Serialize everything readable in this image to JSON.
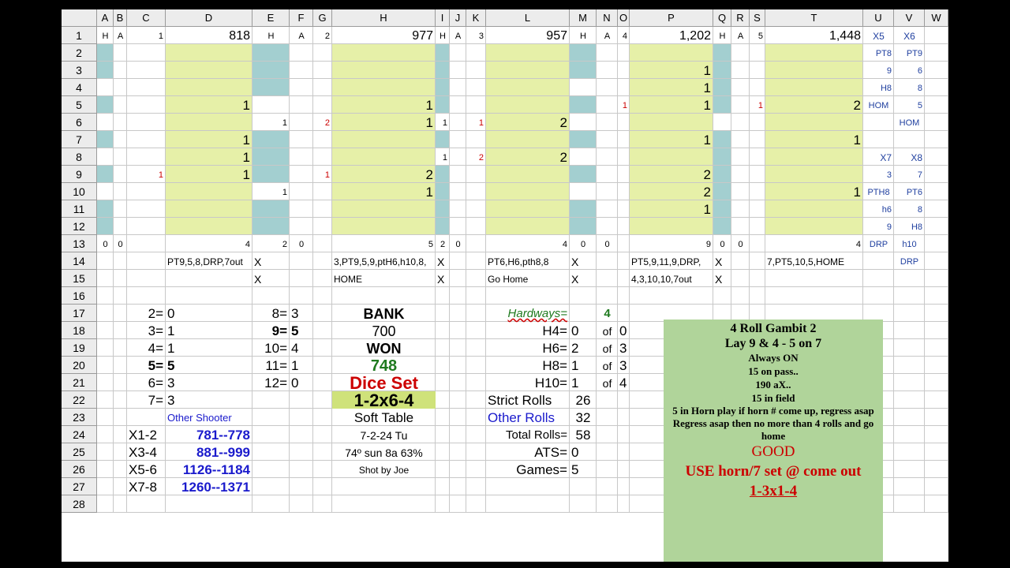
{
  "columns": [
    "A",
    "B",
    "C",
    "D",
    "E",
    "F",
    "G",
    "H",
    "I",
    "J",
    "K",
    "L",
    "M",
    "N",
    "O",
    "P",
    "Q",
    "R",
    "S",
    "T",
    "U",
    "V",
    "W"
  ],
  "rows": [
    "1",
    "2",
    "3",
    "4",
    "5",
    "6",
    "7",
    "8",
    "9",
    "10",
    "11",
    "12",
    "13",
    "14",
    "15",
    "16",
    "17",
    "18",
    "19",
    "20",
    "21",
    "22",
    "23",
    "24",
    "25",
    "26",
    "27",
    "28"
  ],
  "colors": {
    "yellow": "#e6f0a8",
    "teal": "#a3cfd0",
    "red": "#cc0000",
    "blue": "#1a1acc",
    "green": "#1f7a1f",
    "panel": "#b0d49a",
    "navy": "#1f3f9f"
  },
  "cells": [
    {
      "t": "H",
      "c": "A",
      "r": 1,
      "a": "c",
      "s": 11
    },
    {
      "t": "A",
      "c": "B",
      "r": 1,
      "a": "c",
      "s": 11
    },
    {
      "t": "1",
      "c": "C",
      "r": 1,
      "a": "r",
      "s": 11
    },
    {
      "t": "818",
      "c": "D",
      "r": 1,
      "a": "r",
      "s": 16
    },
    {
      "t": "H",
      "c": "E",
      "r": 1,
      "a": "c",
      "s": 11
    },
    {
      "t": "A",
      "c": "F",
      "r": 1,
      "a": "c",
      "s": 11
    },
    {
      "t": "2",
      "c": "G",
      "r": 1,
      "a": "r",
      "s": 11
    },
    {
      "t": "977",
      "c": "H",
      "r": 1,
      "a": "r",
      "s": 16
    },
    {
      "t": "H",
      "c": "I",
      "r": 1,
      "a": "c",
      "s": 11
    },
    {
      "t": "A",
      "c": "J",
      "r": 1,
      "a": "c",
      "s": 11
    },
    {
      "t": "3",
      "c": "K",
      "r": 1,
      "a": "r",
      "s": 11
    },
    {
      "t": "957",
      "c": "L",
      "r": 1,
      "a": "r",
      "s": 16
    },
    {
      "t": "H",
      "c": "M",
      "r": 1,
      "a": "c",
      "s": 11
    },
    {
      "t": "A",
      "c": "N",
      "r": 1,
      "a": "c",
      "s": 11
    },
    {
      "t": "4",
      "c": "O",
      "r": 1,
      "a": "r",
      "s": 11
    },
    {
      "t": "1,202",
      "c": "P",
      "r": 1,
      "a": "r",
      "s": 16
    },
    {
      "t": "H",
      "c": "Q",
      "r": 1,
      "a": "c",
      "s": 11
    },
    {
      "t": "A",
      "c": "R",
      "r": 1,
      "a": "c",
      "s": 11
    },
    {
      "t": "5",
      "c": "S",
      "r": 1,
      "a": "r",
      "s": 11
    },
    {
      "t": "1,448",
      "c": "T",
      "r": 1,
      "a": "r",
      "s": 16
    },
    {
      "t": "X5",
      "c": "U",
      "r": 1,
      "a": "c",
      "s": 12,
      "col": "navy"
    },
    {
      "t": "X6",
      "c": "V",
      "r": 1,
      "a": "c",
      "s": 12,
      "col": "navy"
    },
    {
      "t": "PT8",
      "c": "U",
      "r": 2,
      "a": "r",
      "s": 11,
      "col": "navy"
    },
    {
      "t": "PT9",
      "c": "V",
      "r": 2,
      "a": "r",
      "s": 11,
      "col": "navy"
    },
    {
      "t": "1",
      "c": "P",
      "r": 3,
      "a": "r",
      "s": 17
    },
    {
      "t": "9",
      "c": "U",
      "r": 3,
      "a": "r",
      "s": 11,
      "col": "navy"
    },
    {
      "t": "6",
      "c": "V",
      "r": 3,
      "a": "r",
      "s": 11,
      "col": "navy"
    },
    {
      "t": "1",
      "c": "P",
      "r": 4,
      "a": "r",
      "s": 17
    },
    {
      "t": "H8",
      "c": "U",
      "r": 4,
      "a": "r",
      "s": 11,
      "col": "navy"
    },
    {
      "t": "8",
      "c": "V",
      "r": 4,
      "a": "r",
      "s": 11,
      "col": "navy"
    },
    {
      "t": "1",
      "c": "D",
      "r": 5,
      "a": "r",
      "s": 17
    },
    {
      "t": "1",
      "c": "H",
      "r": 5,
      "a": "r",
      "s": 17
    },
    {
      "t": "1",
      "c": "O",
      "r": 5,
      "a": "r",
      "s": 11,
      "col": "red"
    },
    {
      "t": "1",
      "c": "P",
      "r": 5,
      "a": "r",
      "s": 17
    },
    {
      "t": "1",
      "c": "S",
      "r": 5,
      "a": "r",
      "s": 11,
      "col": "red"
    },
    {
      "t": "2",
      "c": "T",
      "r": 5,
      "a": "r",
      "s": 17
    },
    {
      "t": "HOM",
      "c": "U",
      "r": 5,
      "a": "c",
      "s": 11,
      "col": "navy"
    },
    {
      "t": "5",
      "c": "V",
      "r": 5,
      "a": "r",
      "s": 11,
      "col": "navy"
    },
    {
      "t": "1",
      "c": "E",
      "r": 6,
      "a": "r",
      "s": 11
    },
    {
      "t": "2",
      "c": "G",
      "r": 6,
      "a": "r",
      "s": 11,
      "col": "red"
    },
    {
      "t": "1",
      "c": "H",
      "r": 6,
      "a": "r",
      "s": 17
    },
    {
      "t": "1",
      "c": "I",
      "r": 6,
      "a": "r",
      "s": 11
    },
    {
      "t": "1",
      "c": "K",
      "r": 6,
      "a": "r",
      "s": 11,
      "col": "red"
    },
    {
      "t": "2",
      "c": "L",
      "r": 6,
      "a": "r",
      "s": 17
    },
    {
      "t": "HOM",
      "c": "V",
      "r": 6,
      "a": "c",
      "s": 11,
      "col": "navy"
    },
    {
      "t": "1",
      "c": "D",
      "r": 7,
      "a": "r",
      "s": 17
    },
    {
      "t": "1",
      "c": "P",
      "r": 7,
      "a": "r",
      "s": 17
    },
    {
      "t": "1",
      "c": "T",
      "r": 7,
      "a": "r",
      "s": 17
    },
    {
      "t": "1",
      "c": "D",
      "r": 8,
      "a": "r",
      "s": 17
    },
    {
      "t": "1",
      "c": "I",
      "r": 8,
      "a": "r",
      "s": 11
    },
    {
      "t": "2",
      "c": "K",
      "r": 8,
      "a": "r",
      "s": 11,
      "col": "red"
    },
    {
      "t": "2",
      "c": "L",
      "r": 8,
      "a": "r",
      "s": 17
    },
    {
      "t": "X7",
      "c": "U",
      "r": 8,
      "a": "r",
      "s": 12,
      "col": "navy"
    },
    {
      "t": "X8",
      "c": "V",
      "r": 8,
      "a": "r",
      "s": 12,
      "col": "navy"
    },
    {
      "t": "1",
      "c": "C",
      "r": 9,
      "a": "r",
      "s": 11,
      "col": "red"
    },
    {
      "t": "1",
      "c": "D",
      "r": 9,
      "a": "r",
      "s": 17
    },
    {
      "t": "1",
      "c": "G",
      "r": 9,
      "a": "r",
      "s": 11,
      "col": "red"
    },
    {
      "t": "2",
      "c": "H",
      "r": 9,
      "a": "r",
      "s": 17
    },
    {
      "t": "2",
      "c": "P",
      "r": 9,
      "a": "r",
      "s": 17
    },
    {
      "t": "3",
      "c": "U",
      "r": 9,
      "a": "r",
      "s": 11,
      "col": "navy"
    },
    {
      "t": "7",
      "c": "V",
      "r": 9,
      "a": "r",
      "s": 11,
      "col": "navy"
    },
    {
      "t": "1",
      "c": "E",
      "r": 10,
      "a": "r",
      "s": 11
    },
    {
      "t": "1",
      "c": "H",
      "r": 10,
      "a": "r",
      "s": 17
    },
    {
      "t": "2",
      "c": "P",
      "r": 10,
      "a": "r",
      "s": 17
    },
    {
      "t": "1",
      "c": "T",
      "r": 10,
      "a": "r",
      "s": 17
    },
    {
      "t": "PTH8",
      "c": "U",
      "r": 10,
      "a": "c",
      "s": 11,
      "col": "navy"
    },
    {
      "t": "PT6",
      "c": "V",
      "r": 10,
      "a": "r",
      "s": 11,
      "col": "navy"
    },
    {
      "t": "1",
      "c": "P",
      "r": 11,
      "a": "r",
      "s": 17
    },
    {
      "t": "h6",
      "c": "U",
      "r": 11,
      "a": "r",
      "s": 11,
      "col": "navy"
    },
    {
      "t": "8",
      "c": "V",
      "r": 11,
      "a": "r",
      "s": 11,
      "col": "navy"
    },
    {
      "t": "9",
      "c": "U",
      "r": 12,
      "a": "r",
      "s": 11,
      "col": "navy"
    },
    {
      "t": "H8",
      "c": "V",
      "r": 12,
      "a": "r",
      "s": 11,
      "col": "navy"
    },
    {
      "t": "0",
      "c": "A",
      "r": 13,
      "a": "c",
      "s": 11
    },
    {
      "t": "0",
      "c": "B",
      "r": 13,
      "a": "c",
      "s": 11
    },
    {
      "t": "4",
      "c": "D",
      "r": 13,
      "a": "r",
      "s": 11
    },
    {
      "t": "2",
      "c": "E",
      "r": 13,
      "a": "r",
      "s": 11
    },
    {
      "t": "0",
      "c": "F",
      "r": 13,
      "a": "c",
      "s": 11
    },
    {
      "t": "5",
      "c": "H",
      "r": 13,
      "a": "r",
      "s": 11
    },
    {
      "t": "2",
      "c": "I",
      "r": 13,
      "a": "c",
      "s": 11
    },
    {
      "t": "0",
      "c": "J",
      "r": 13,
      "a": "c",
      "s": 11
    },
    {
      "t": "4",
      "c": "L",
      "r": 13,
      "a": "r",
      "s": 11
    },
    {
      "t": "0",
      "c": "M",
      "r": 13,
      "a": "c",
      "s": 11
    },
    {
      "t": "0",
      "c": "N",
      "r": 13,
      "a": "c",
      "s": 11
    },
    {
      "t": "9",
      "c": "P",
      "r": 13,
      "a": "r",
      "s": 11
    },
    {
      "t": "0",
      "c": "Q",
      "r": 13,
      "a": "c",
      "s": 11
    },
    {
      "t": "0",
      "c": "R",
      "r": 13,
      "a": "c",
      "s": 11
    },
    {
      "t": "4",
      "c": "T",
      "r": 13,
      "a": "r",
      "s": 11
    },
    {
      "t": "DRP",
      "c": "U",
      "r": 13,
      "a": "c",
      "s": 11,
      "col": "navy"
    },
    {
      "t": "h10",
      "c": "V",
      "r": 13,
      "a": "c",
      "s": 11,
      "col": "navy"
    },
    {
      "t": "PT9,5,8,DRP,7out",
      "c": "D",
      "r": 14,
      "a": "l",
      "s": 12
    },
    {
      "t": "X",
      "c": "E",
      "r": 14,
      "a": "l",
      "s": 14
    },
    {
      "t": "3,PT9,5,9,ptH6,h10,8,",
      "c": "H",
      "r": 14,
      "a": "l",
      "s": 12
    },
    {
      "t": "X",
      "c": "I",
      "r": 14,
      "a": "l",
      "s": 14
    },
    {
      "t": "PT6,H6,pth8,8",
      "c": "L",
      "r": 14,
      "a": "l",
      "s": 12
    },
    {
      "t": "X",
      "c": "M",
      "r": 14,
      "a": "l",
      "s": 14
    },
    {
      "t": "PT5,9,11,9,DRP,",
      "c": "P",
      "r": 14,
      "a": "l",
      "s": 12
    },
    {
      "t": "X",
      "c": "Q",
      "r": 14,
      "a": "l",
      "s": 14
    },
    {
      "t": "7,PT5,10,5,HOME",
      "c": "T",
      "r": 14,
      "a": "l",
      "s": 12
    },
    {
      "t": "DRP",
      "c": "V",
      "r": 14,
      "a": "c",
      "s": 11,
      "col": "navy"
    },
    {
      "t": "X",
      "c": "E",
      "r": 15,
      "a": "l",
      "s": 14
    },
    {
      "t": "HOME",
      "c": "H",
      "r": 15,
      "a": "l",
      "s": 12
    },
    {
      "t": "X",
      "c": "I",
      "r": 15,
      "a": "l",
      "s": 14
    },
    {
      "t": "Go Home",
      "c": "L",
      "r": 15,
      "a": "l",
      "s": 12
    },
    {
      "t": "X",
      "c": "M",
      "r": 15,
      "a": "l",
      "s": 14
    },
    {
      "t": "4,3,10,10,7out",
      "c": "P",
      "r": 15,
      "a": "l",
      "s": 12
    },
    {
      "t": "X",
      "c": "Q",
      "r": 15,
      "a": "l",
      "s": 14
    },
    {
      "t": "2=",
      "c": "C",
      "r": 17,
      "a": "r",
      "s": 17
    },
    {
      "t": "0",
      "c": "D",
      "r": 17,
      "a": "l",
      "s": 17
    },
    {
      "t": "8=",
      "c": "E",
      "r": 17,
      "a": "r",
      "s": 17
    },
    {
      "t": "3",
      "c": "F",
      "r": 17,
      "a": "l",
      "s": 17
    },
    {
      "t": "BANK",
      "c": "H",
      "r": 17,
      "a": "c",
      "s": 18,
      "b": 1
    },
    {
      "t": "Hardways=",
      "c": "L",
      "r": 17,
      "a": "r",
      "s": 15,
      "col": "green",
      "it": 1,
      "u": 1
    },
    {
      "t": "4",
      "c": "N",
      "r": 17,
      "a": "c",
      "s": 15,
      "col": "green",
      "b": 1
    },
    {
      "t": "3=",
      "c": "C",
      "r": 18,
      "a": "r",
      "s": 17
    },
    {
      "t": "1",
      "c": "D",
      "r": 18,
      "a": "l",
      "s": 17
    },
    {
      "t": "9=",
      "c": "E",
      "r": 18,
      "a": "r",
      "s": 17,
      "b": 1
    },
    {
      "t": "5",
      "c": "F",
      "r": 18,
      "a": "l",
      "s": 17,
      "b": 1
    },
    {
      "t": "700",
      "c": "H",
      "r": 18,
      "a": "c",
      "s": 18
    },
    {
      "t": "H4=",
      "c": "L",
      "r": 18,
      "a": "r",
      "s": 17
    },
    {
      "t": "0",
      "c": "M",
      "r": 18,
      "a": "l",
      "s": 17
    },
    {
      "t": "of",
      "c": "N",
      "r": 18,
      "a": "c",
      "s": 14
    },
    {
      "t": "0",
      "c": "O",
      "r": 18,
      "a": "l",
      "s": 17
    },
    {
      "t": "4=",
      "c": "C",
      "r": 19,
      "a": "r",
      "s": 17
    },
    {
      "t": "1",
      "c": "D",
      "r": 19,
      "a": "l",
      "s": 17
    },
    {
      "t": "10=",
      "c": "E",
      "r": 19,
      "a": "r",
      "s": 17
    },
    {
      "t": "4",
      "c": "F",
      "r": 19,
      "a": "l",
      "s": 17
    },
    {
      "t": "WON",
      "c": "H",
      "r": 19,
      "a": "c",
      "s": 18,
      "b": 1
    },
    {
      "t": "H6=",
      "c": "L",
      "r": 19,
      "a": "r",
      "s": 17
    },
    {
      "t": "2",
      "c": "M",
      "r": 19,
      "a": "l",
      "s": 17
    },
    {
      "t": "of",
      "c": "N",
      "r": 19,
      "a": "c",
      "s": 14
    },
    {
      "t": "3",
      "c": "O",
      "r": 19,
      "a": "l",
      "s": 17
    },
    {
      "t": "5=",
      "c": "C",
      "r": 20,
      "a": "r",
      "s": 17,
      "b": 1
    },
    {
      "t": "5",
      "c": "D",
      "r": 20,
      "a": "l",
      "s": 17,
      "b": 1
    },
    {
      "t": "11=",
      "c": "E",
      "r": 20,
      "a": "r",
      "s": 17
    },
    {
      "t": "1",
      "c": "F",
      "r": 20,
      "a": "l",
      "s": 17
    },
    {
      "t": "748",
      "c": "H",
      "r": 20,
      "a": "c",
      "s": 20,
      "b": 1,
      "col": "green"
    },
    {
      "t": "H8=",
      "c": "L",
      "r": 20,
      "a": "r",
      "s": 17
    },
    {
      "t": "1",
      "c": "M",
      "r": 20,
      "a": "l",
      "s": 17
    },
    {
      "t": "of",
      "c": "N",
      "r": 20,
      "a": "c",
      "s": 14
    },
    {
      "t": "3",
      "c": "O",
      "r": 20,
      "a": "l",
      "s": 17
    },
    {
      "t": "6=",
      "c": "C",
      "r": 21,
      "a": "r",
      "s": 17
    },
    {
      "t": "3",
      "c": "D",
      "r": 21,
      "a": "l",
      "s": 17
    },
    {
      "t": "12=",
      "c": "E",
      "r": 21,
      "a": "r",
      "s": 17
    },
    {
      "t": "0",
      "c": "F",
      "r": 21,
      "a": "l",
      "s": 17
    },
    {
      "t": "Dice Set",
      "c": "H",
      "r": 21,
      "a": "c",
      "s": 22,
      "b": 1,
      "col": "red"
    },
    {
      "t": "H10=",
      "c": "L",
      "r": 21,
      "a": "r",
      "s": 17
    },
    {
      "t": "1",
      "c": "M",
      "r": 21,
      "a": "l",
      "s": 17
    },
    {
      "t": "of",
      "c": "N",
      "r": 21,
      "a": "c",
      "s": 14
    },
    {
      "t": "4",
      "c": "O",
      "r": 21,
      "a": "l",
      "s": 17
    },
    {
      "t": "7=",
      "c": "C",
      "r": 22,
      "a": "r",
      "s": 17
    },
    {
      "t": "3",
      "c": "D",
      "r": 22,
      "a": "l",
      "s": 17
    },
    {
      "t": "1-2x6-4",
      "c": "H",
      "r": 22,
      "a": "c",
      "s": 22,
      "b": 1,
      "bg": "#cfe27a"
    },
    {
      "t": "Strict Rolls",
      "c": "L",
      "r": 22,
      "a": "l",
      "s": 17
    },
    {
      "t": "26",
      "c": "M",
      "r": 22,
      "a": "c",
      "s": 17
    },
    {
      "t": "Other Shooter",
      "c": "D",
      "r": 23,
      "a": "l",
      "s": 13,
      "col": "blue"
    },
    {
      "t": "Soft Table",
      "c": "H",
      "r": 23,
      "a": "c",
      "s": 17
    },
    {
      "t": "Other Rolls",
      "c": "L",
      "r": 23,
      "a": "l",
      "s": 17,
      "col": "blue"
    },
    {
      "t": "32",
      "c": "M",
      "r": 23,
      "a": "c",
      "s": 17
    },
    {
      "t": "X1-2",
      "c": "C",
      "r": 24,
      "a": "l",
      "s": 17
    },
    {
      "t": "781--778",
      "c": "D",
      "r": 24,
      "a": "r",
      "s": 17,
      "b": 1,
      "col": "blue"
    },
    {
      "t": "7-2-24 Tu",
      "c": "H",
      "r": 24,
      "a": "c",
      "s": 14
    },
    {
      "t": "Total Rolls=",
      "c": "L",
      "r": 24,
      "a": "r",
      "s": 15
    },
    {
      "t": "58",
      "c": "M",
      "r": 24,
      "a": "c",
      "s": 17
    },
    {
      "t": "X3-4",
      "c": "C",
      "r": 25,
      "a": "l",
      "s": 17
    },
    {
      "t": "881--999",
      "c": "D",
      "r": 25,
      "a": "r",
      "s": 17,
      "b": 1,
      "col": "blue"
    },
    {
      "t": "74º sun 8a 63%",
      "c": "H",
      "r": 25,
      "a": "c",
      "s": 14
    },
    {
      "t": "ATS=",
      "c": "L",
      "r": 25,
      "a": "r",
      "s": 17
    },
    {
      "t": "0",
      "c": "M",
      "r": 25,
      "a": "l",
      "s": 17
    },
    {
      "t": "X5-6",
      "c": "C",
      "r": 26,
      "a": "l",
      "s": 17
    },
    {
      "t": "1126--1184",
      "c": "D",
      "r": 26,
      "a": "r",
      "s": 17,
      "b": 1,
      "col": "blue"
    },
    {
      "t": "Shot by Joe",
      "c": "H",
      "r": 26,
      "a": "c",
      "s": 12
    },
    {
      "t": "Games=",
      "c": "L",
      "r": 26,
      "a": "r",
      "s": 17
    },
    {
      "t": "5",
      "c": "M",
      "r": 26,
      "a": "l",
      "s": 17
    },
    {
      "t": "X7-8",
      "c": "C",
      "r": 27,
      "a": "l",
      "s": 17
    },
    {
      "t": "1260--1371",
      "c": "D",
      "r": 27,
      "a": "r",
      "s": 17,
      "b": 1,
      "col": "blue"
    }
  ],
  "panel": {
    "title": "4 Roll Gambit 2",
    "subtitle": "Lay 9 & 4 - 5 on 7",
    "lines": [
      "Always ON",
      "15 on pass..",
      "190 aX..",
      "15 in field",
      "5 in Horn play if horn # come up, regress asap",
      "Regress asap then no more than 4 rolls and go home"
    ],
    "good": "GOOD",
    "use": "USE horn/7 set @ come out",
    "set": "1-3x1-4"
  }
}
